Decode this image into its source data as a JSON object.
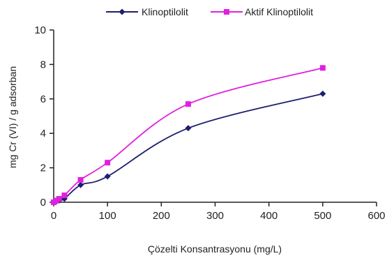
{
  "chart_data": {
    "type": "line",
    "title": "",
    "xlabel": "Çözelti Konsantrasyonu (mg/L)",
    "ylabel": "mg Cr (VI) / g adsorban",
    "xlim": [
      0,
      600
    ],
    "ylim": [
      0,
      10
    ],
    "xticks": [
      "0",
      "100",
      "200",
      "300",
      "400",
      "500",
      "600"
    ],
    "yticks": [
      "0",
      "2",
      "4",
      "6",
      "8",
      "10"
    ],
    "grid": false,
    "legend_position": "top",
    "series": [
      {
        "name": "Klinoptilolit",
        "color": "#1f1f6e",
        "marker": "diamond",
        "x": [
          0,
          5,
          10,
          20,
          50,
          100,
          250,
          500
        ],
        "y": [
          0,
          0.05,
          0.1,
          0.2,
          1.0,
          1.5,
          4.3,
          6.3
        ]
      },
      {
        "name": "Aktif Klinoptilolit",
        "color": "#e020e0",
        "marker": "square",
        "x": [
          0,
          5,
          10,
          20,
          50,
          100,
          250,
          500
        ],
        "y": [
          0,
          0.1,
          0.2,
          0.4,
          1.3,
          2.3,
          5.7,
          7.8
        ]
      }
    ]
  }
}
